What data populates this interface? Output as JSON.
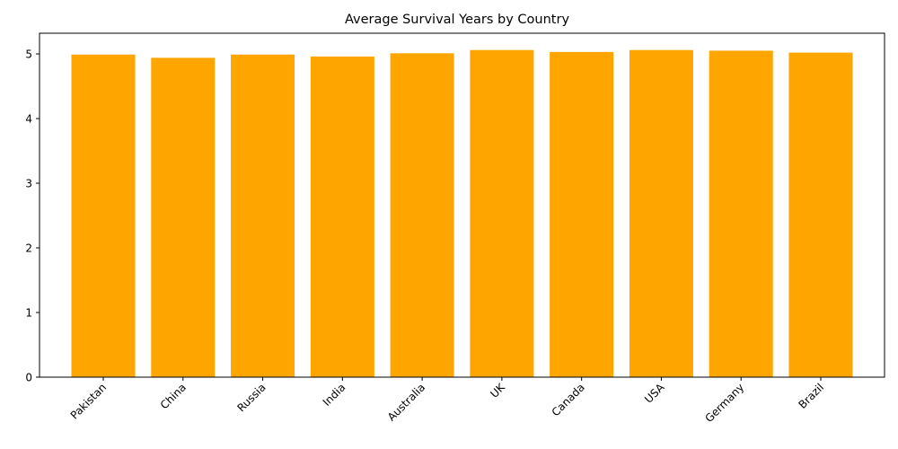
{
  "chart_data": {
    "type": "bar",
    "title": "Average Survival Years by Country",
    "xlabel": "",
    "ylabel": "",
    "categories": [
      "Pakistan",
      "China",
      "Russia",
      "India",
      "Australia",
      "UK",
      "Canada",
      "USA",
      "Germany",
      "Brazil"
    ],
    "values": [
      4.99,
      4.94,
      4.99,
      4.96,
      5.01,
      5.06,
      5.03,
      5.06,
      5.05,
      5.02
    ],
    "ylim": [
      0,
      5.32
    ],
    "yticks": [
      "0",
      "1",
      "2",
      "3",
      "4",
      "5"
    ],
    "bar_color": "#ffa500",
    "grid": false,
    "legend": "none"
  }
}
